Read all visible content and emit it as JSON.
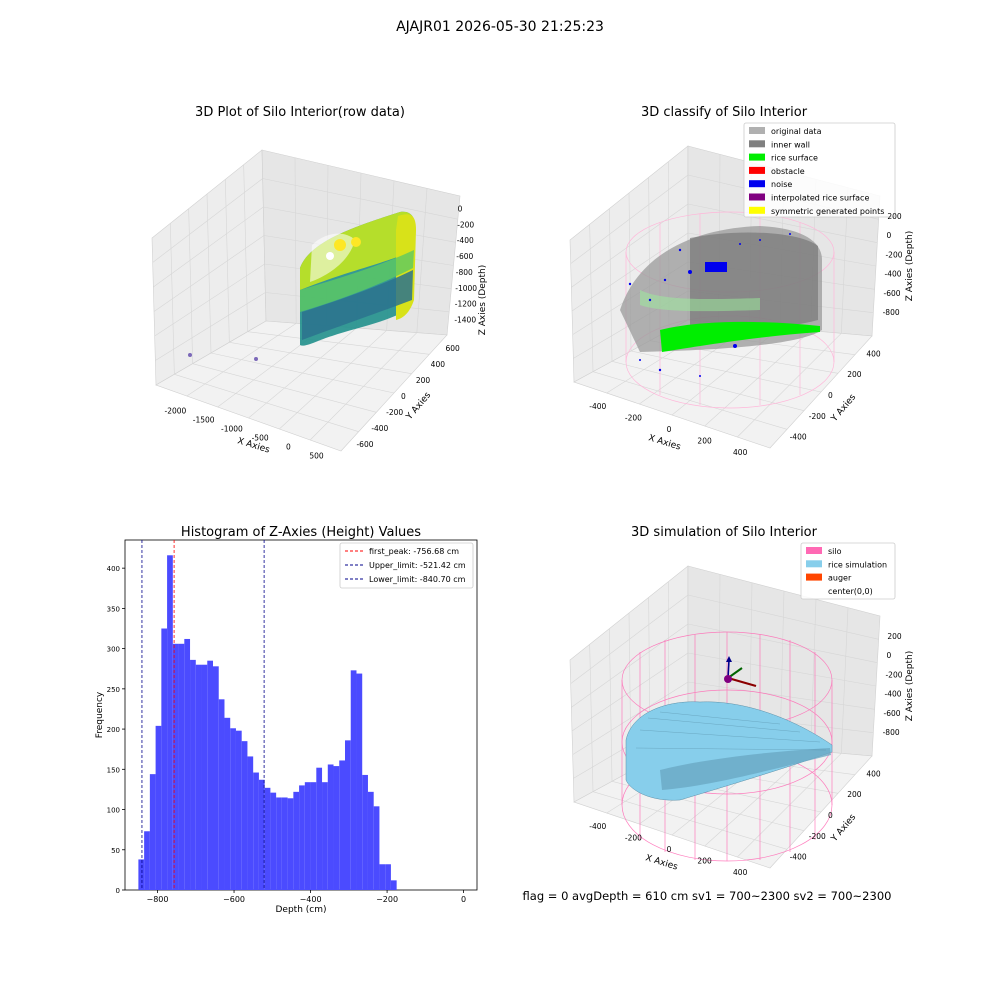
{
  "figure": {
    "suptitle": "AJAJR01 2026-05-30 21:25:23",
    "footer": "flag = 0     avgDepth = 610 cm  sv1 = 700~2300  sv2 = 700~2300"
  },
  "chart_data": [
    {
      "type": "scatter",
      "projection": "3d",
      "title": "3D Plot of Silo Interior(row data)",
      "xlabel": "X Axies",
      "ylabel": "Y Axies",
      "zlabel": "Z Axies (Depth)",
      "xticks": [
        "-2000",
        "-1500",
        "-1000",
        "-500",
        "0",
        "500"
      ],
      "yticks": [
        "-600",
        "-400",
        "-200",
        "0",
        "200",
        "400",
        "600"
      ],
      "zticks": [
        "0",
        "-200",
        "-400",
        "-600",
        "-800",
        "-1000",
        "-1200",
        "-1400"
      ],
      "colormap": "viridis",
      "outliers": [
        {
          "x": -2100,
          "y": 300
        },
        {
          "x": -1500,
          "y": 100
        }
      ]
    },
    {
      "type": "scatter",
      "projection": "3d",
      "title": "3D classify of Silo Interior",
      "xlabel": "X Axies",
      "ylabel": "Y Axies",
      "zlabel": "Z Axies (Depth)",
      "xticks": [
        "-400",
        "-200",
        "0",
        "200",
        "400"
      ],
      "yticks": [
        "-400",
        "-200",
        "0",
        "200",
        "400"
      ],
      "zticks": [
        "200",
        "0",
        "-200",
        "-400",
        "-600",
        "-800"
      ],
      "legend_position": "top-right",
      "legend": [
        {
          "label": "original data",
          "color": "#b0b0b0"
        },
        {
          "label": "inner wall",
          "color": "#808080"
        },
        {
          "label": "rice surface",
          "color": "#00ee00"
        },
        {
          "label": "obstacle",
          "color": "#ff0000"
        },
        {
          "label": "noise",
          "color": "#0000ee"
        },
        {
          "label": "interpolated rice surface",
          "color": "#800080"
        },
        {
          "label": "symmetric generated points",
          "color": "#ffff00"
        }
      ]
    },
    {
      "type": "bar",
      "title": "Histogram of Z-Axies (Height) Values",
      "xlabel": "Depth (cm)",
      "ylabel": "Frequency",
      "bar_color": "#4b4bff",
      "xlim": [
        -885,
        35
      ],
      "ylim": [
        0,
        435
      ],
      "xticks": [
        -800,
        -600,
        -400,
        -200,
        0
      ],
      "yticks": [
        0,
        50,
        100,
        150,
        200,
        250,
        300,
        350,
        400
      ],
      "bin_width": 15,
      "bin_start": -850,
      "values": [
        38,
        73,
        144,
        204,
        325,
        416,
        306,
        306,
        312,
        286,
        280,
        280,
        285,
        278,
        237,
        214,
        201,
        198,
        185,
        166,
        146,
        137,
        127,
        121,
        115,
        115,
        114,
        122,
        130,
        134,
        134,
        152,
        134,
        156,
        154,
        161,
        186,
        273,
        269,
        143,
        122,
        104,
        32,
        32,
        12
      ],
      "legend_position": "top-right",
      "lines": [
        {
          "label": "first_peak: -756.68 cm",
          "x": -756.68,
          "color": "#ff0000"
        },
        {
          "label": "Upper_limit: -521.42 cm",
          "x": -521.42,
          "color": "#00008b"
        },
        {
          "label": "Lower_limit: -840.70 cm",
          "x": -840.7,
          "color": "#00008b"
        }
      ]
    },
    {
      "type": "scatter",
      "projection": "3d",
      "title": "3D simulation of Silo Interior",
      "xlabel": "X Axies",
      "ylabel": "Y Axies",
      "zlabel": "Z Axies (Depth)",
      "xticks": [
        "-400",
        "-200",
        "0",
        "200",
        "400"
      ],
      "yticks": [
        "-400",
        "-200",
        "0",
        "200",
        "400"
      ],
      "zticks": [
        "200",
        "0",
        "-200",
        "-400",
        "-600",
        "-800"
      ],
      "legend_position": "top-right",
      "legend": [
        {
          "label": "silo",
          "color": "#ff69b4"
        },
        {
          "label": "rice simulation",
          "color": "#87ceeb"
        },
        {
          "label": "auger",
          "color": "#ff4500"
        },
        {
          "label": "center(0,0)",
          "color": "#ffffff"
        }
      ]
    }
  ]
}
